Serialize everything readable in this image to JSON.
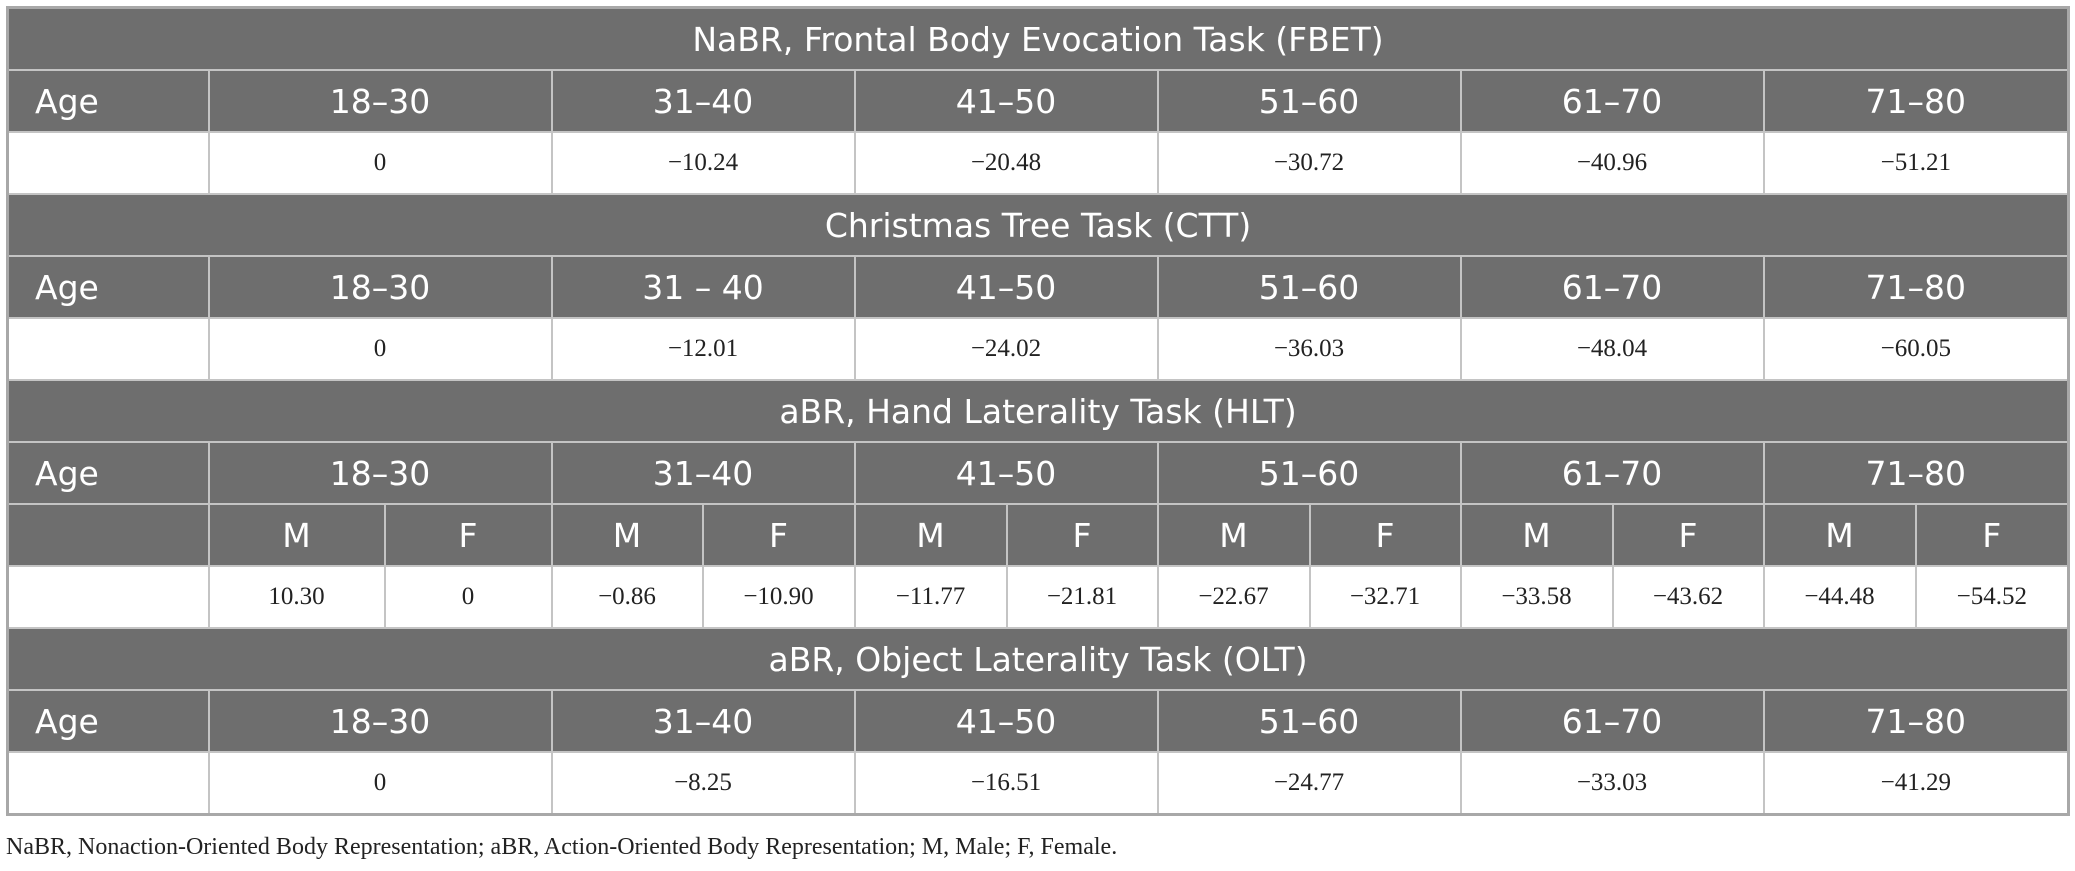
{
  "sections": [
    {
      "title": "NaBR, Frontal Body Evocation Task (FBET)",
      "age_label": "Age",
      "age_groups": [
        "18–30",
        "31–40",
        "41–50",
        "51–60",
        "61–70",
        "71–80"
      ],
      "values": [
        "0",
        "−10.24",
        "−20.48",
        "−30.72",
        "−40.96",
        "−51.21"
      ]
    },
    {
      "title": "Christmas Tree Task (CTT)",
      "age_label": "Age",
      "age_groups": [
        "18–30",
        "31 – 40",
        "41–50",
        "51–60",
        "61–70",
        "71–80"
      ],
      "values": [
        "0",
        "−12.01",
        "−24.02",
        "−36.03",
        "−48.04",
        "−60.05"
      ]
    },
    {
      "title": "aBR, Hand Laterality Task (HLT)",
      "age_label": "Age",
      "age_groups": [
        "18–30",
        "31–40",
        "41–50",
        "51–60",
        "61–70",
        "71–80"
      ],
      "sex_labels": [
        "M",
        "F",
        "M",
        "F",
        "M",
        "F",
        "M",
        "F",
        "M",
        "F",
        "M",
        "F"
      ],
      "values": [
        "10.30",
        "0",
        "−0.86",
        "−10.90",
        "−11.77",
        "−21.81",
        "−22.67",
        "−32.71",
        "−33.58",
        "−43.62",
        "−44.48",
        "−54.52"
      ]
    },
    {
      "title": "aBR, Object Laterality Task (OLT)",
      "age_label": "Age",
      "age_groups": [
        "18–30",
        "31–40",
        "41–50",
        "51–60",
        "61–70",
        "71–80"
      ],
      "values": [
        "0",
        "−8.25",
        "−16.51",
        "−24.77",
        "−33.03",
        "−41.29"
      ]
    }
  ],
  "footnote": "NaBR, Nonaction-Oriented Body Representation; aBR, Action-Oriented Body Representation; M, Male; F, Female."
}
